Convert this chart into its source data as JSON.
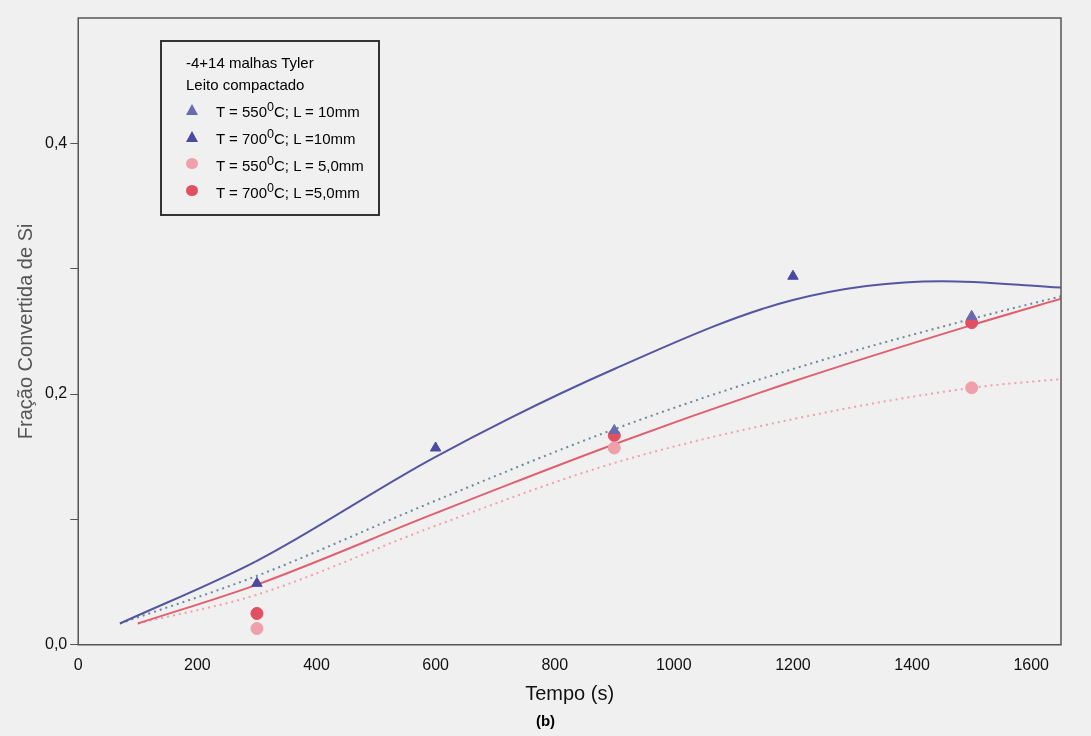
{
  "chart_data": {
    "type": "scatter",
    "xlabel": "Tempo (s)",
    "ylabel": "Fração Convertida de Si",
    "legend_title": "-4+14 malhas Tyler\nLeito compactado",
    "legend": "top left",
    "grid": false,
    "xlim": [
      0,
      1650
    ],
    "xticks": [
      0,
      200,
      400,
      600,
      800,
      1000,
      1200,
      1400,
      1600
    ],
    "ylim": [
      0,
      0.5
    ],
    "yticks": [
      {
        "value": 0,
        "label": "0,0"
      },
      {
        "value": 0.1,
        "label": null
      },
      {
        "value": 0.2,
        "label": "0,2"
      },
      {
        "value": 0.3,
        "label": null
      },
      {
        "value": 0.4,
        "label": "0,4"
      }
    ],
    "annotations": [
      "(b)"
    ],
    "series": [
      {
        "name": "T = 550$^{0}$C; L = 10mm",
        "marker": "triangle",
        "color": "#6a6ab0",
        "x": [
          900,
          1500
        ],
        "values": [
          0.171,
          0.262
        ]
      },
      {
        "name": "T = 700$^{0}$C; L =10mm",
        "marker": "triangle",
        "color": "#4a4aa0",
        "x": [
          300,
          600,
          1200
        ],
        "values": [
          0.049,
          0.157,
          0.294
        ]
      },
      {
        "name": "T = 550$^{0}$C; L = 5,0mm",
        "marker": "circle",
        "color": "#f0a0a8",
        "x": [
          300,
          900,
          1500
        ],
        "values": [
          0.013,
          0.157,
          0.205
        ]
      },
      {
        "name": "T = 700$^{0}$C; L =5,0mm",
        "marker": "circle",
        "color": "#e05060",
        "x": [
          300,
          900,
          1500
        ],
        "values": [
          0.025,
          0.167,
          0.257
        ]
      },
      {
        "type": "line",
        "line_style": "solid",
        "marker": "none",
        "color": "#5555a0",
        "x": [
          70,
          300,
          600,
          900,
          1200,
          1450,
          1650
        ],
        "values": [
          0.017,
          0.067,
          0.15,
          0.22,
          0.275,
          0.29,
          0.285
        ]
      },
      {
        "type": "line",
        "line_style": "dotted",
        "marker": "none",
        "color": "#6a8a9a",
        "x": [
          70,
          300,
          600,
          900,
          1200,
          1500,
          1650
        ],
        "values": [
          0.017,
          0.055,
          0.115,
          0.172,
          0.22,
          0.26,
          0.278
        ]
      },
      {
        "type": "line",
        "line_style": "solid",
        "marker": "none",
        "color": "#e06070",
        "x": [
          100,
          300,
          600,
          900,
          1200,
          1500,
          1650
        ],
        "values": [
          0.017,
          0.048,
          0.105,
          0.16,
          0.21,
          0.255,
          0.276
        ]
      },
      {
        "type": "line",
        "line_style": "dotted",
        "marker": "none",
        "color": "#f0a0a8",
        "x": [
          100,
          300,
          600,
          900,
          1200,
          1500,
          1650
        ],
        "values": [
          0.017,
          0.04,
          0.095,
          0.145,
          0.18,
          0.205,
          0.212
        ]
      }
    ]
  }
}
